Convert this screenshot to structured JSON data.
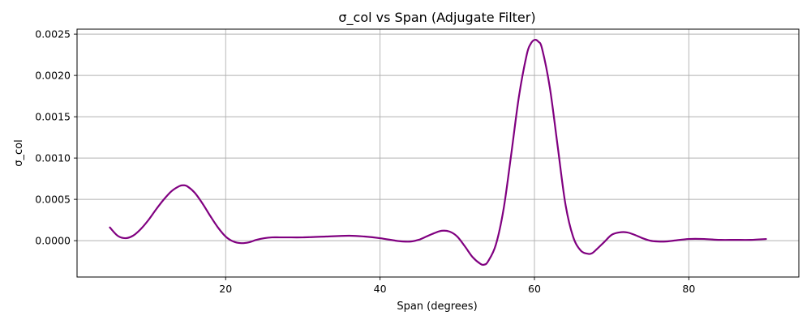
{
  "chart_data": {
    "type": "line",
    "title": "σ_col vs Span (Adjugate Filter)",
    "xlabel": "Span (degrees)",
    "ylabel": "σ_col",
    "xlim": [
      0.75,
      94.25
    ],
    "ylim": [
      -0.00044,
      0.00256
    ],
    "xticks": [
      20,
      40,
      60,
      80
    ],
    "yticks": [
      0.0,
      0.0005,
      0.001,
      0.0015,
      0.002,
      0.0025
    ],
    "ytick_labels": [
      "0.0000",
      "0.0005",
      "0.0010",
      "0.0015",
      "0.0020",
      "0.0025"
    ],
    "grid": true,
    "series": [
      {
        "color": "#800080",
        "x": [
          5,
          6,
          7,
          8,
          9,
          10,
          11,
          12,
          13,
          14,
          14.5,
          15,
          16,
          17,
          18,
          19,
          20,
          21,
          22,
          23,
          24,
          25,
          26,
          27,
          28,
          30,
          33,
          36,
          38,
          40,
          42,
          43,
          44,
          45,
          46,
          47,
          48,
          49,
          50,
          51,
          52,
          53,
          53.5,
          54,
          55,
          56,
          57,
          58,
          59,
          59.5,
          60,
          60.5,
          61,
          62,
          63,
          64,
          65,
          66,
          67,
          67.5,
          68,
          69,
          70,
          71,
          72,
          73,
          74,
          75,
          76,
          77,
          78,
          80,
          82,
          84,
          86,
          88,
          90
        ],
        "y": [
          0.00016,
          6e-05,
          3e-05,
          6e-05,
          0.00014,
          0.00025,
          0.00038,
          0.0005,
          0.0006,
          0.00066,
          0.00067,
          0.00066,
          0.00058,
          0.00045,
          0.0003,
          0.00016,
          5e-05,
          -1e-05,
          -3e-05,
          -2e-05,
          1e-05,
          3e-05,
          4e-05,
          4e-05,
          4e-05,
          4e-05,
          5e-05,
          6e-05,
          5e-05,
          3e-05,
          0.0,
          -1e-05,
          -1e-05,
          1e-05,
          5e-05,
          9e-05,
          0.00012,
          0.00011,
          5e-05,
          -7e-05,
          -0.0002,
          -0.00028,
          -0.00029,
          -0.00025,
          -5e-05,
          0.00038,
          0.00105,
          0.00175,
          0.00225,
          0.00238,
          0.00243,
          0.00241,
          0.00232,
          0.00185,
          0.00115,
          0.00045,
          5e-05,
          -0.00012,
          -0.00016,
          -0.00015,
          -0.00011,
          -2e-05,
          7e-05,
          0.0001,
          0.0001,
          7e-05,
          3e-05,
          0.0,
          -1e-05,
          -1e-05,
          0.0,
          2e-05,
          2e-05,
          1e-05,
          1e-05,
          1e-05,
          2e-05
        ]
      }
    ]
  }
}
